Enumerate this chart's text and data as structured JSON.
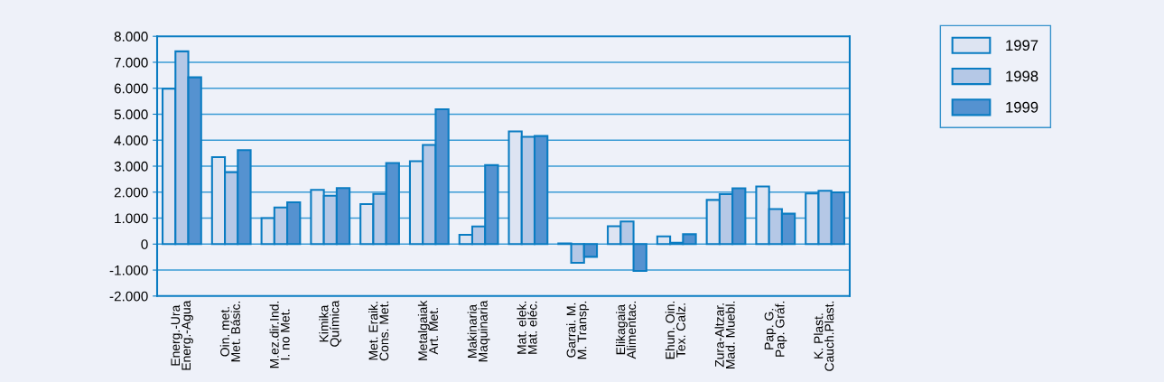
{
  "chart_data": {
    "type": "bar",
    "categories": [
      "Energ.-Ura\nEnerg.-Agua",
      "Oin. met.\nMet. Básic.",
      "M.ez.dir.Ind.\nI. no Met.",
      "Kimika\nQuímica",
      "Met. Eraik.\nCons. Met.",
      "Metalgaiak\nArt. Met.",
      "Makinaria\nMaquinaria",
      "Mat. elek.\nMat. eléc.",
      "Garrai. M.\nM. Transp.",
      "Elikagaia\nAlimentac.",
      "Ehun. Oin.\nTex. Calz.",
      "Zura-Altzar.\nMad. Muebl.",
      "Pap. G.\nPap. Gráf.",
      "K. Plast.\nCauch.Plast."
    ],
    "series": [
      {
        "name": "1997",
        "color": "#dde4f2",
        "values": [
          5980,
          3350,
          1000,
          2090,
          1540,
          3190,
          360,
          4340,
          30,
          690,
          300,
          1700,
          2220,
          1950
        ]
      },
      {
        "name": "1998",
        "color": "#b5c8e6",
        "values": [
          7420,
          2770,
          1410,
          1860,
          1930,
          3820,
          680,
          4130,
          -720,
          870,
          50,
          1920,
          1350,
          2050
        ]
      },
      {
        "name": "1999",
        "color": "#5592d0",
        "values": [
          6420,
          3620,
          1610,
          2160,
          3120,
          5190,
          3040,
          4160,
          -490,
          -1030,
          380,
          2150,
          1170,
          1990
        ]
      }
    ],
    "ylim": [
      -2000,
      8000
    ],
    "yticks": [
      {
        "value": -2000,
        "label": "-2.000"
      },
      {
        "value": -1000,
        "label": "-1.000"
      },
      0,
      {
        "value": 1000,
        "label": "1.000"
      },
      {
        "value": 2000,
        "label": "2.000"
      },
      {
        "value": 3000,
        "label": "3.000"
      },
      {
        "value": 4000,
        "label": "4.000"
      },
      {
        "value": 5000,
        "label": "5.000"
      },
      {
        "value": 6000,
        "label": "6.000"
      },
      {
        "value": 7000,
        "label": "7.000"
      },
      {
        "value": 8000,
        "label": "8.000"
      }
    ],
    "grid": "y",
    "legend": "right"
  }
}
